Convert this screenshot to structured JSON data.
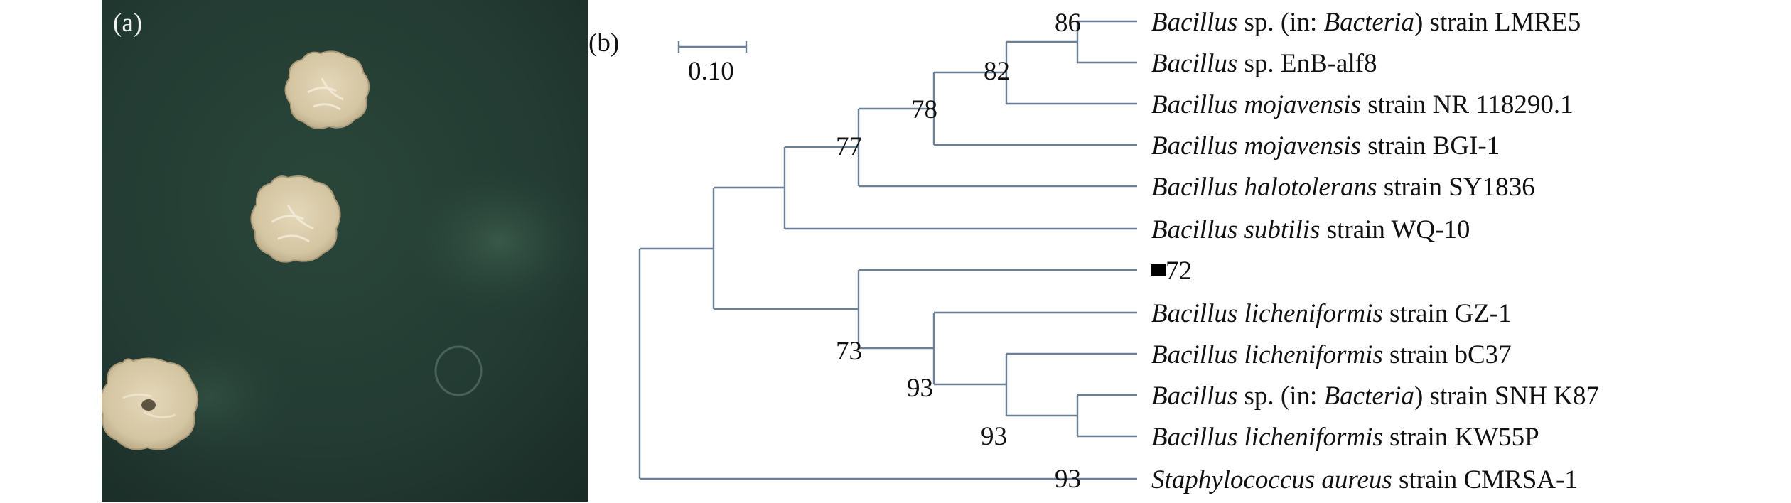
{
  "panel_a": {
    "label": "(a)",
    "colors": {
      "agar": "#233b33",
      "colony": "#d7c9a8",
      "colony_edge": "#b9a988"
    }
  },
  "panel_b": {
    "label": "(b)",
    "scale_bar": {
      "label": "0.10",
      "value": 0.1
    },
    "colors": {
      "branch": "#6b7f95",
      "text": "#111111"
    },
    "taxa": [
      {
        "genus": "Bacillus",
        "species": "sp.",
        "rest": " (in: ",
        "paren": "Bacteria",
        "after": ") strain LMRE5"
      },
      {
        "genus": "Bacillus",
        "species": "sp.",
        "rest": " EnB-alf8"
      },
      {
        "genus": "Bacillus",
        "species": "mojavensis",
        "rest": " strain NR 118290.1"
      },
      {
        "genus": "Bacillus",
        "species": "mojavensis",
        "rest": " strain BGI-1"
      },
      {
        "genus": "Bacillus",
        "species": "halotolerans",
        "rest": " strain SY1836"
      },
      {
        "genus": "Bacillus",
        "species": "subtilis",
        "rest": " strain WQ-10"
      },
      {
        "plain": "72",
        "marker": "filled-square"
      },
      {
        "genus": "Bacillus",
        "species": "licheniformis",
        "rest": " strain GZ-1"
      },
      {
        "genus": "Bacillus",
        "species": "licheniformis",
        "rest": " strain bC37"
      },
      {
        "genus": "Bacillus",
        "species": "sp.",
        "rest": " (in: ",
        "paren": "Bacteria",
        "after": ") strain SNH K87"
      },
      {
        "genus": "Bacillus",
        "species": "licheniformis",
        "rest": " strain KW55P"
      },
      {
        "genus": "Staphylococcus",
        "species": "aureus",
        "rest": " strain CMRSA-1"
      }
    ],
    "bootstrap": [
      "86",
      "82",
      "78",
      "77",
      "73",
      "93",
      "93",
      "93"
    ]
  }
}
